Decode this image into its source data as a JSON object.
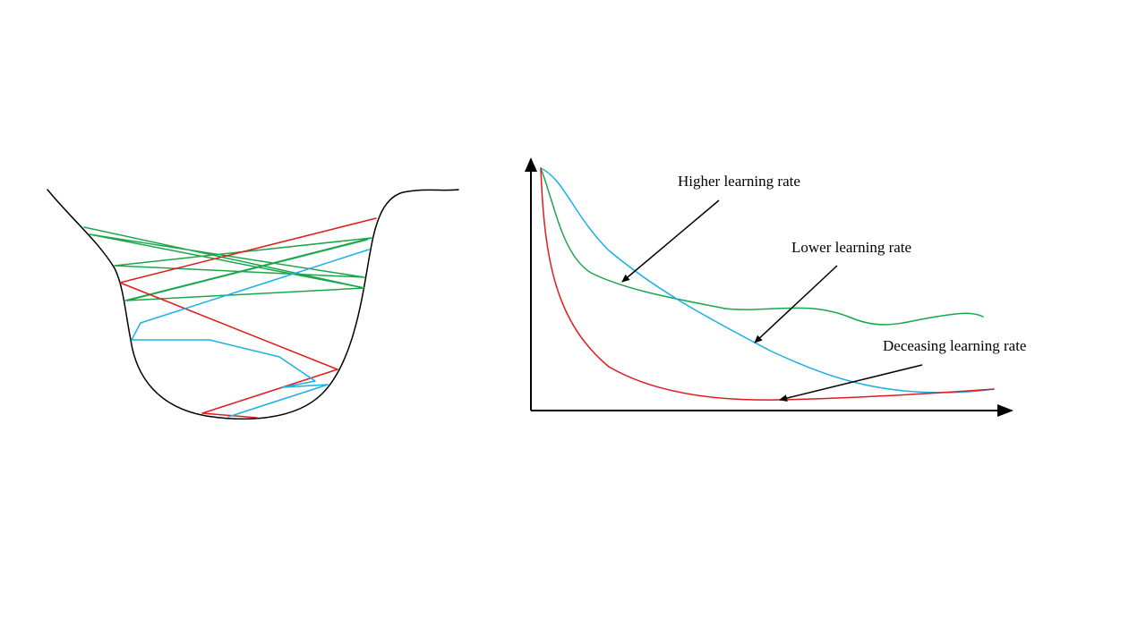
{
  "colors": {
    "background": "#ffffff",
    "outline": "#000000",
    "higher": "#1aa64a",
    "lower": "#1ab0e6",
    "decreasing": "#e01b1b",
    "axis": "#000000"
  },
  "labels": {
    "higher": "Higher learning rate",
    "lower": "Lower learning rate",
    "decreasing": "Deceasing learning rate"
  }
}
